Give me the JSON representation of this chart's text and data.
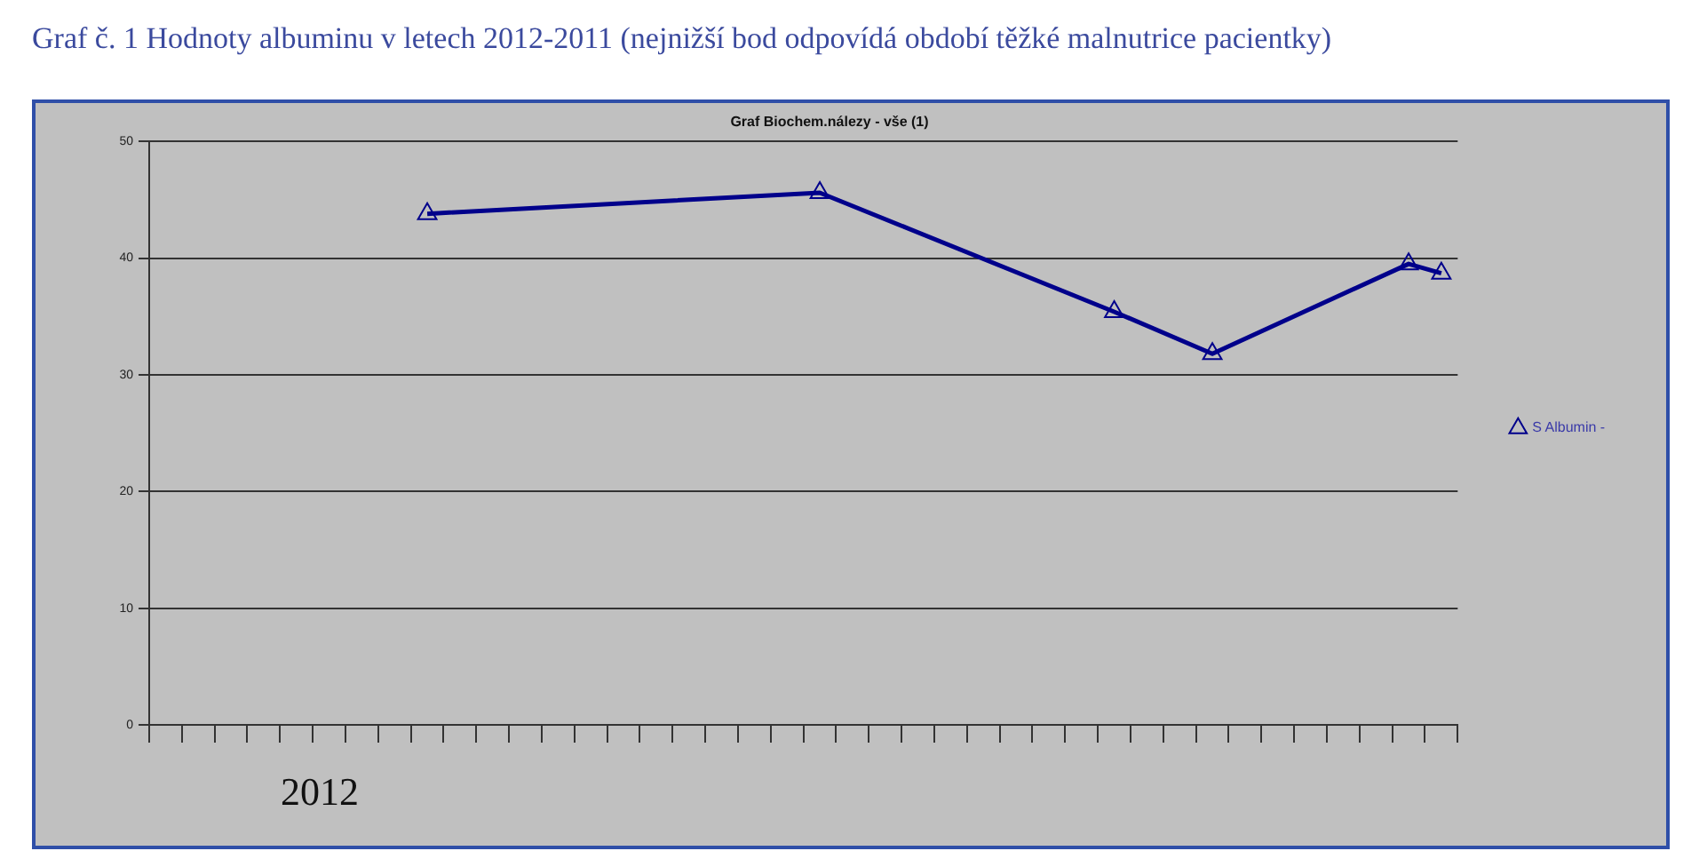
{
  "chart_data": {
    "type": "line",
    "title": "Graf č. 1  Hodnoty albuminu v letech 2012-2011 (nejnižší bod odpovídá období těžké malnutrice pacientky)",
    "subtitle": "Graf Biochem.nálezy - vše (1)",
    "annotations": [
      "2012"
    ],
    "categories": [
      null,
      null,
      null,
      null,
      null,
      null,
      null,
      null,
      null,
      null,
      null,
      null,
      null,
      null,
      null,
      null,
      null,
      null,
      null,
      null,
      null,
      null,
      null,
      null,
      null,
      null,
      null,
      null,
      null,
      null,
      null,
      null,
      null,
      null,
      null,
      null,
      null,
      null,
      null,
      null
    ],
    "series": [
      {
        "name": "S Albumin -",
        "color": "#00008b",
        "values": [
          null,
          null,
          null,
          null,
          null,
          null,
          null,
          null,
          43.8,
          null,
          null,
          null,
          null,
          null,
          null,
          null,
          null,
          null,
          null,
          null,
          45.6,
          null,
          null,
          null,
          null,
          null,
          null,
          null,
          null,
          35.4,
          null,
          null,
          31.8,
          null,
          null,
          null,
          null,
          null,
          39.5,
          38.7
        ]
      }
    ],
    "ylim": [
      0,
      50
    ],
    "yticks": [
      0,
      10,
      20,
      30,
      40,
      50
    ],
    "grid": "y",
    "legend": "right",
    "marker": "triangle",
    "line_style": "solid",
    "tick_labels": "y"
  }
}
